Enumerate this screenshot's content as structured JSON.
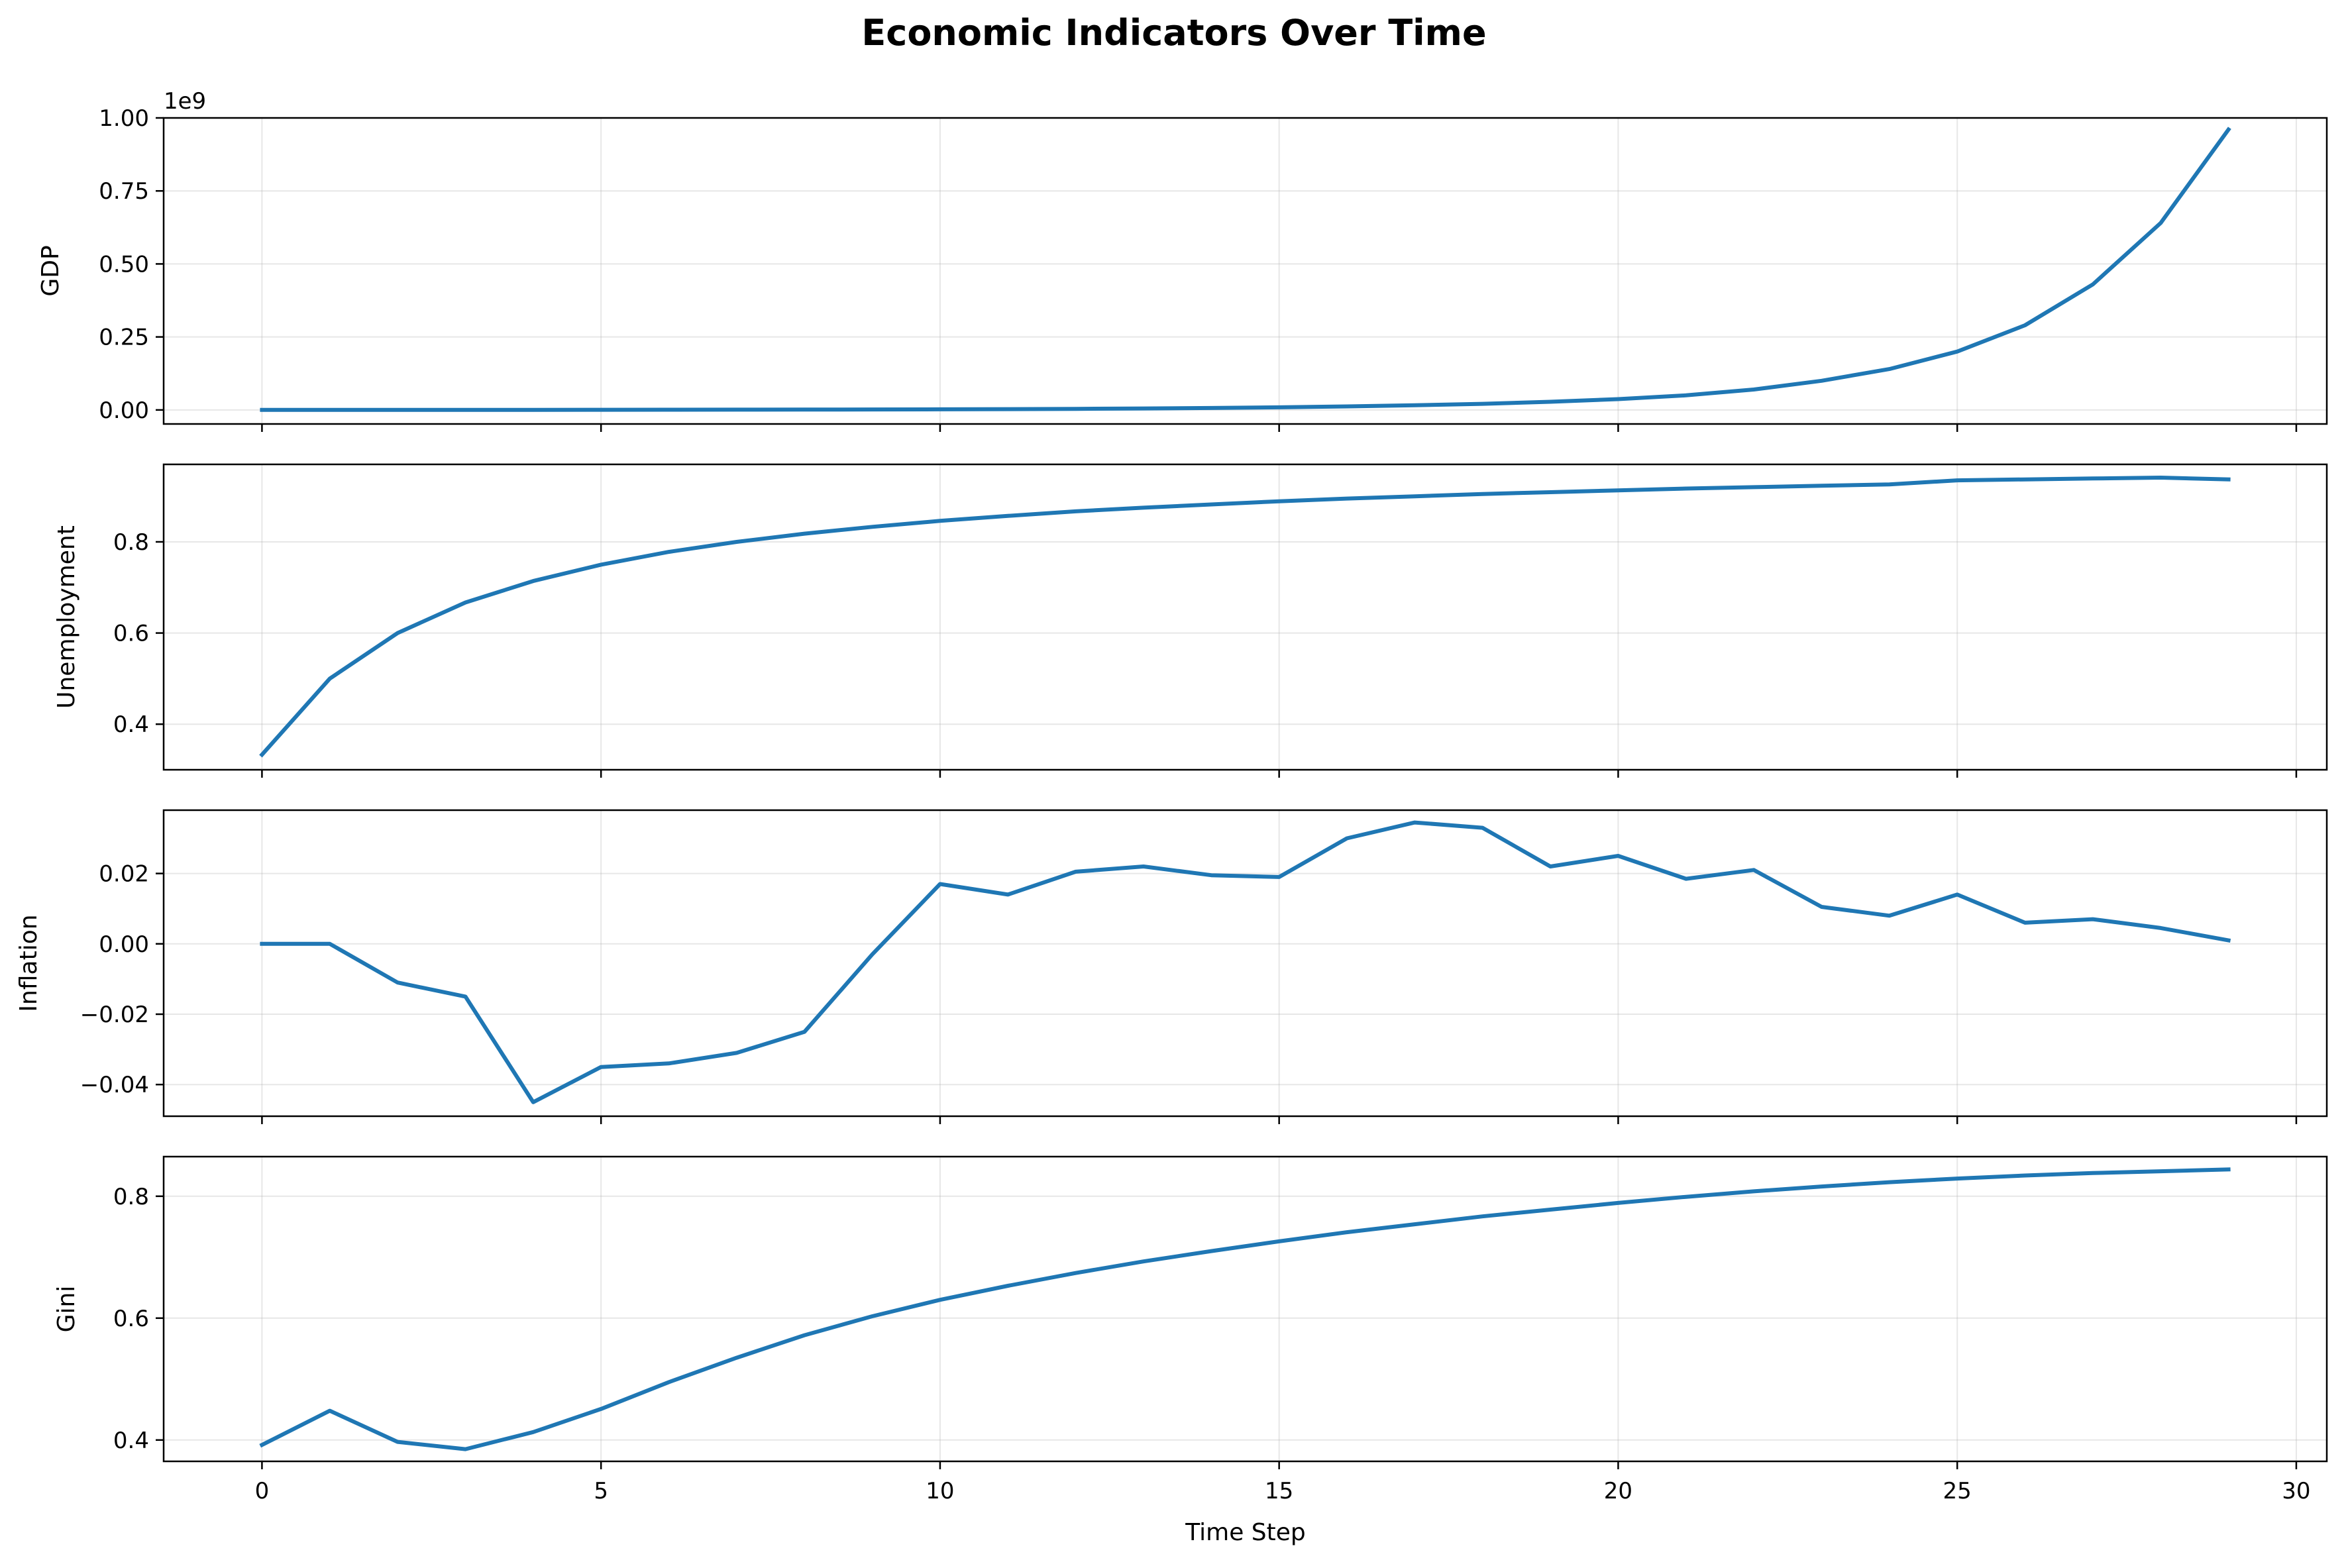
{
  "chart_data": {
    "type": "line",
    "title": "Economic Indicators Over Time",
    "xlabel": "Time Step",
    "x": [
      0,
      1,
      2,
      3,
      4,
      5,
      6,
      7,
      8,
      9,
      10,
      11,
      12,
      13,
      14,
      15,
      16,
      17,
      18,
      19,
      20,
      21,
      22,
      23,
      24,
      25,
      26,
      27,
      28,
      29
    ],
    "xlim": [
      -1.45,
      30.45
    ],
    "xticks": [
      0,
      5,
      10,
      15,
      20,
      25,
      30
    ],
    "xtick_labels": [
      "0",
      "5",
      "10",
      "15",
      "20",
      "25",
      "30"
    ],
    "grid": true,
    "line_color": "#1f77b4",
    "panels": [
      {
        "ylabel": "GDP",
        "offset_text": "1e9",
        "ylim": [
          -0.048,
          1.0
        ],
        "yticks": [
          0,
          0.25,
          0.5,
          0.75,
          1.0
        ],
        "ytick_labels": [
          "0.00",
          "0.25",
          "0.50",
          "0.75",
          "1.00"
        ],
        "values": [
          0.0001,
          0.0002,
          0.0002,
          0.0003,
          0.0004,
          0.0005,
          0.0007,
          0.0009,
          0.0012,
          0.0016,
          0.0021,
          0.0028,
          0.0037,
          0.005,
          0.0067,
          0.009,
          0.012,
          0.016,
          0.021,
          0.028,
          0.037,
          0.05,
          0.07,
          0.1,
          0.14,
          0.2,
          0.29,
          0.43,
          0.64,
          0.96
        ]
      },
      {
        "ylabel": "Unemployment",
        "ylim": [
          0.3,
          0.97
        ],
        "yticks": [
          0.4,
          0.6,
          0.8
        ],
        "ytick_labels": [
          "0.4",
          "0.6",
          "0.8"
        ],
        "values": [
          0.333,
          0.5,
          0.6,
          0.667,
          0.714,
          0.75,
          0.778,
          0.8,
          0.818,
          0.833,
          0.846,
          0.857,
          0.867,
          0.875,
          0.882,
          0.889,
          0.895,
          0.9,
          0.905,
          0.909,
          0.913,
          0.917,
          0.92,
          0.923,
          0.926,
          0.935,
          0.937,
          0.939,
          0.941,
          0.937
        ]
      },
      {
        "ylabel": "Inflation",
        "ylim": [
          -0.049,
          0.038
        ],
        "yticks": [
          -0.04,
          -0.02,
          0.0,
          0.02
        ],
        "ytick_labels": [
          "−0.04",
          "−0.02",
          "0.00",
          "0.02"
        ],
        "values": [
          0.0,
          0.0,
          -0.011,
          -0.015,
          -0.045,
          -0.035,
          -0.034,
          -0.031,
          -0.025,
          -0.003,
          0.017,
          0.014,
          0.0205,
          0.022,
          0.0195,
          0.019,
          0.03,
          0.0345,
          0.033,
          0.022,
          0.025,
          0.0185,
          0.021,
          0.0105,
          0.008,
          0.014,
          0.006,
          0.007,
          0.0045,
          0.001
        ]
      },
      {
        "ylabel": "Gini",
        "ylim": [
          0.365,
          0.865
        ],
        "yticks": [
          0.4,
          0.6,
          0.8
        ],
        "ytick_labels": [
          "0.4",
          "0.6",
          "0.8"
        ],
        "values": [
          0.392,
          0.448,
          0.397,
          0.385,
          0.413,
          0.451,
          0.495,
          0.535,
          0.572,
          0.603,
          0.63,
          0.653,
          0.674,
          0.693,
          0.71,
          0.726,
          0.741,
          0.754,
          0.767,
          0.778,
          0.789,
          0.799,
          0.808,
          0.816,
          0.823,
          0.829,
          0.834,
          0.838,
          0.841,
          0.844
        ]
      }
    ]
  }
}
